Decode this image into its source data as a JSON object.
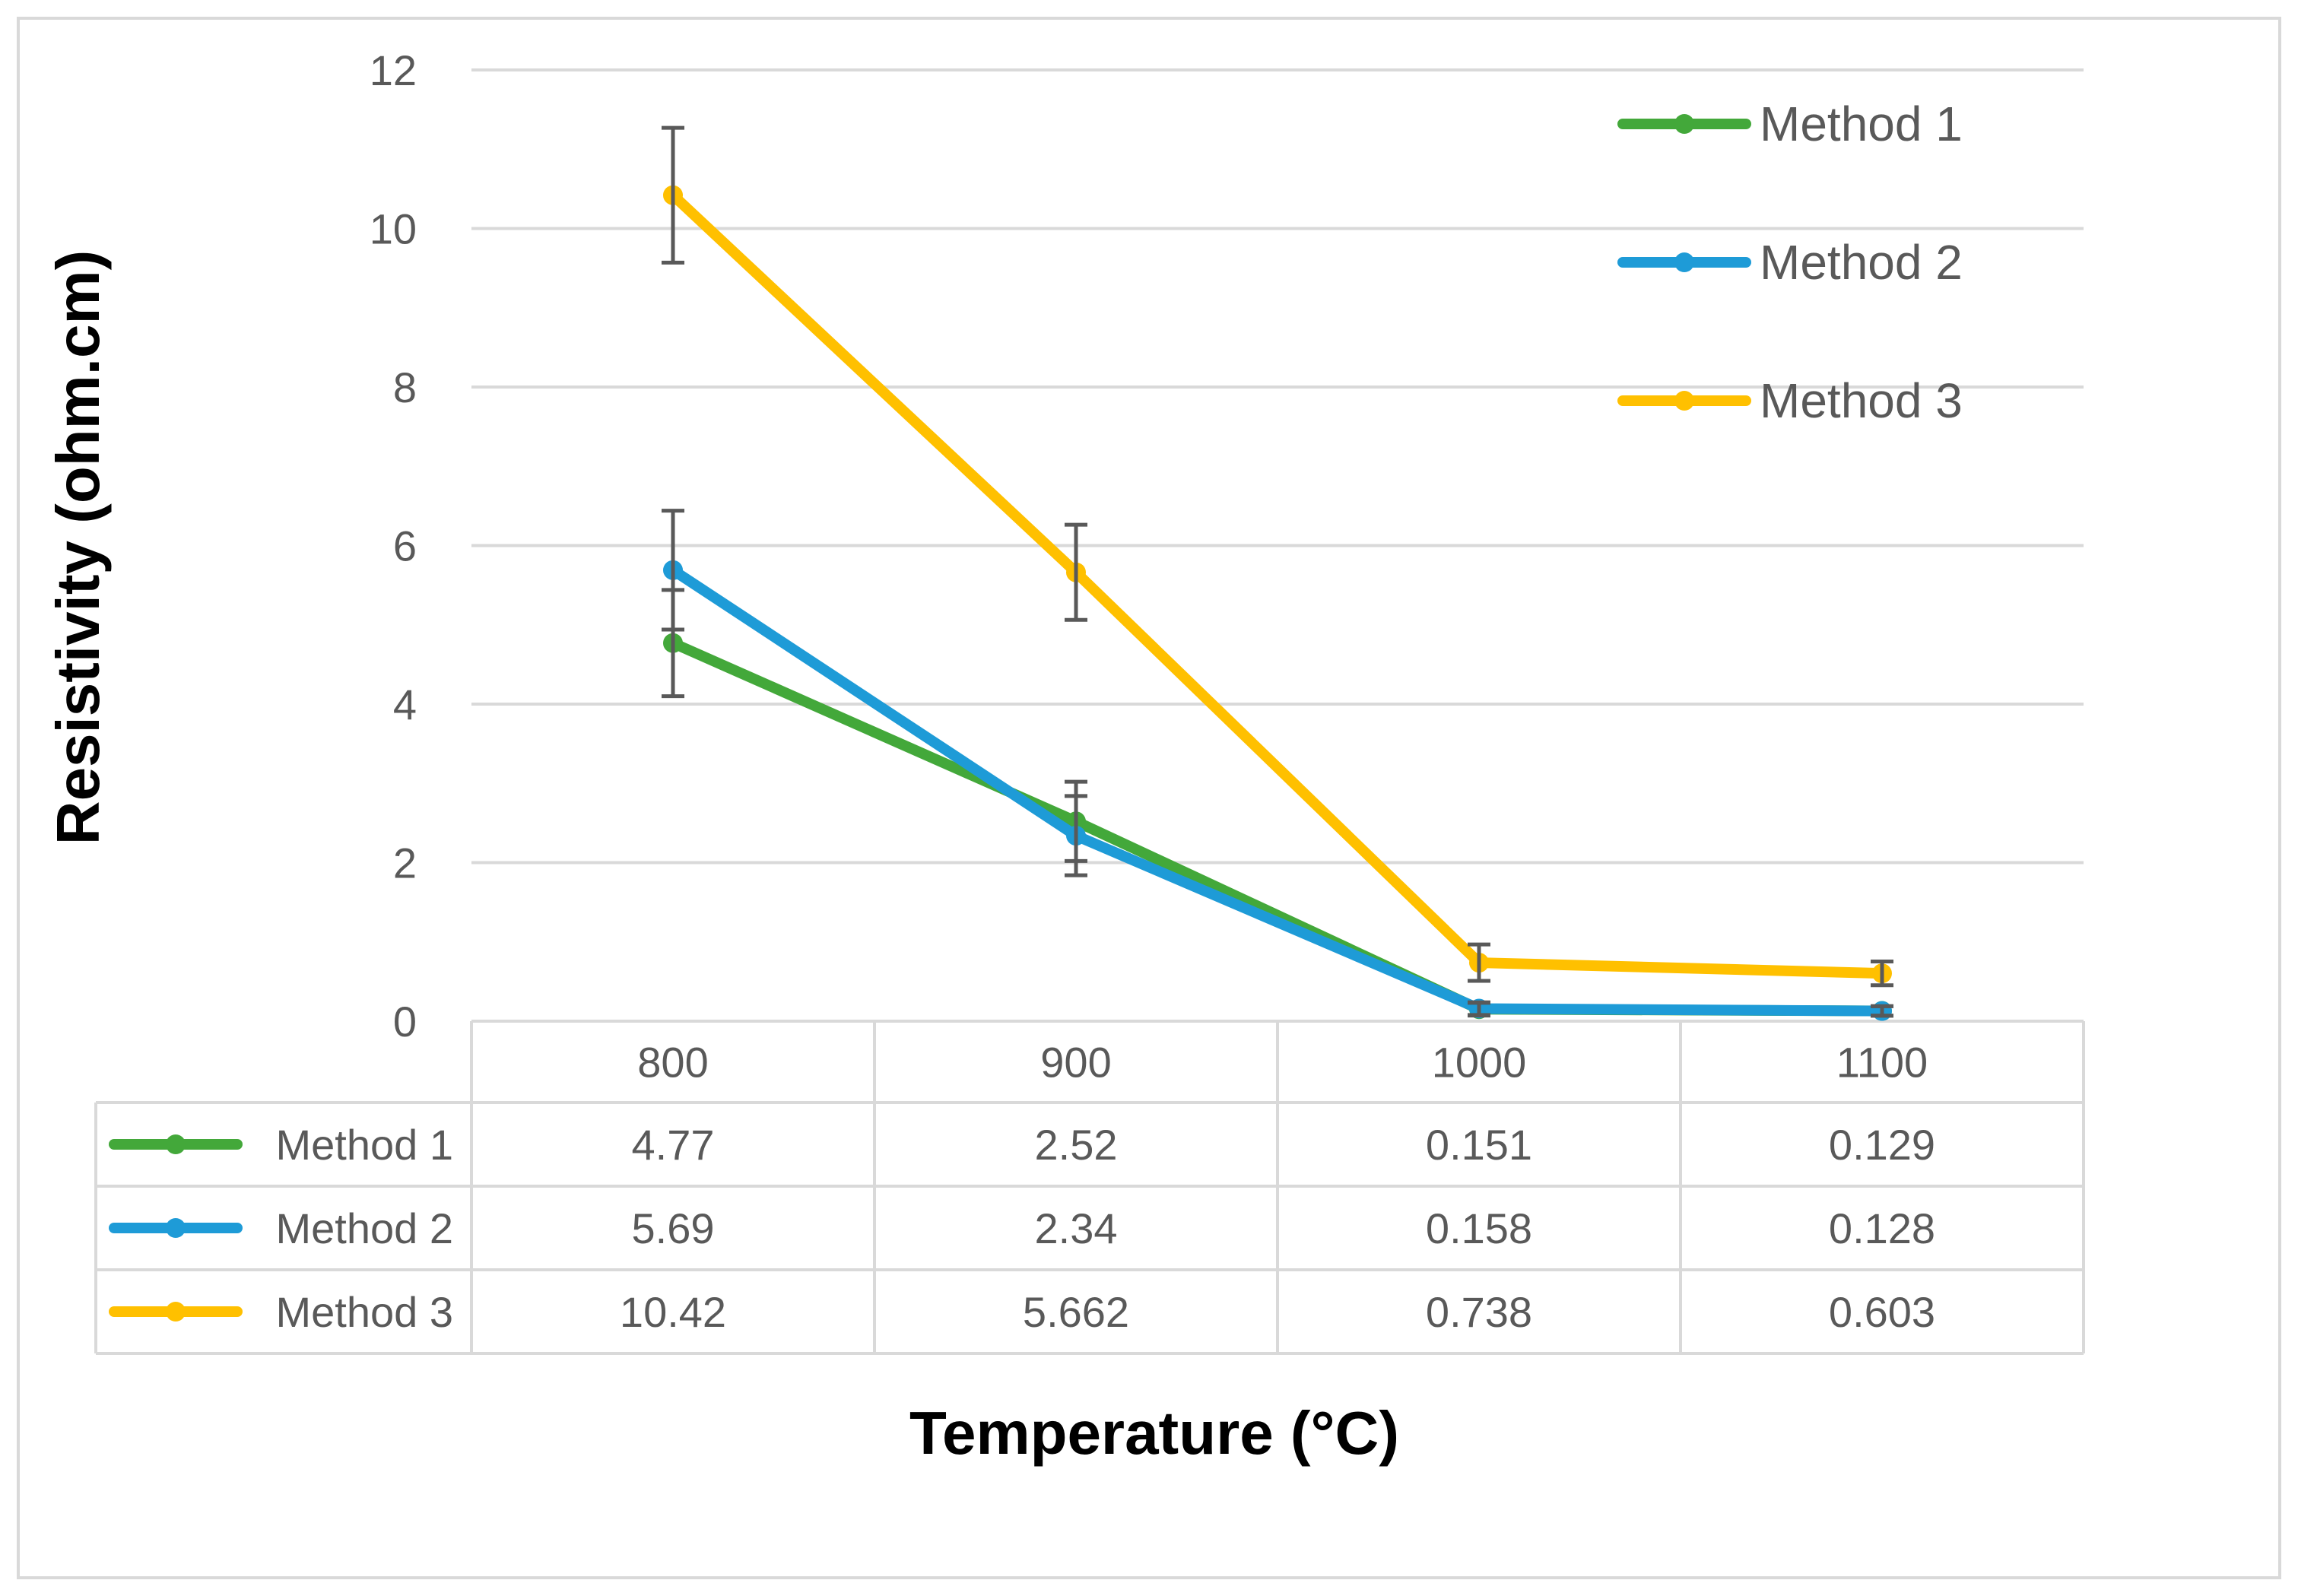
{
  "chart_data": {
    "type": "line",
    "title": "",
    "xlabel": "Temperature (°C)",
    "ylabel": "Resistivity (ohm.cm)",
    "categories": [
      "800",
      "900",
      "1000",
      "1100"
    ],
    "ylim": [
      0,
      12
    ],
    "yticks": [
      0,
      2,
      4,
      6,
      8,
      10,
      12
    ],
    "grid": true,
    "legend_position": "top-right",
    "data_table": true,
    "series": [
      {
        "name": "Method 1",
        "color": "#43a83a",
        "values": [
          4.77,
          2.52,
          0.151,
          0.129
        ],
        "labels": [
          "4.77",
          "2.52",
          "0.151",
          "0.129"
        ],
        "error_bars": [
          0.67,
          0.5,
          0.08,
          0.06
        ]
      },
      {
        "name": "Method 2",
        "color": "#1e9bd7",
        "values": [
          5.69,
          2.34,
          0.158,
          0.128
        ],
        "labels": [
          "5.69",
          "2.34",
          "0.158",
          "0.128"
        ],
        "error_bars": [
          0.75,
          0.5,
          0.08,
          0.06
        ]
      },
      {
        "name": "Method 3",
        "color": "#ffc000",
        "values": [
          10.42,
          5.662,
          0.738,
          0.603
        ],
        "labels": [
          "10.42",
          "5.662",
          "0.738",
          "0.603"
        ],
        "error_bars": [
          0.85,
          0.6,
          0.23,
          0.15
        ]
      }
    ]
  }
}
